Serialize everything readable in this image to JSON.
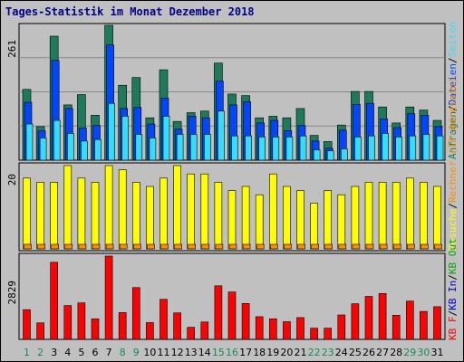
{
  "title": "Tages-Statistik im Monat Dezember 2018",
  "colors": {
    "hits": "#1e7a5a",
    "files": "#0046ff",
    "pages": "#33ddff",
    "visits": "#ffff00",
    "sites": "#ff8c00",
    "kbin": "#0000cc",
    "kbout": "#00aa00",
    "kbf": "#ff0000",
    "weekday": "#000000",
    "weekend": "#1a8a5a"
  },
  "legend_right": {
    "top": [
      "Anfragen",
      "/",
      "Dateien",
      "/",
      "Seiten"
    ],
    "middle": [
      "Besuche",
      "/",
      "Rechner (IP-Adressen)"
    ],
    "bottom": [
      "KB F",
      "/",
      "KB In",
      "/",
      "KB Out"
    ]
  },
  "chart_data": [
    {
      "type": "bar",
      "panel": "Anfragen / Dateien / Seiten",
      "ymax_label": "261",
      "ylim": [
        0,
        261
      ],
      "categories": [
        "1",
        "2",
        "3",
        "4",
        "5",
        "6",
        "7",
        "8",
        "9",
        "10",
        "11",
        "12",
        "13",
        "14",
        "15",
        "16",
        "17",
        "18",
        "19",
        "20",
        "21",
        "22",
        "23",
        "24",
        "25",
        "26",
        "27",
        "28",
        "29",
        "30",
        "31"
      ],
      "weekend_days": [
        1,
        2,
        8,
        9,
        15,
        16,
        22,
        23,
        29,
        30
      ],
      "series": [
        {
          "name": "Anfragen",
          "values": [
            137,
            65,
            240,
            107,
            127,
            87,
            261,
            145,
            160,
            82,
            175,
            75,
            92,
            95,
            188,
            128,
            125,
            82,
            85,
            82,
            100,
            48,
            36,
            68,
            133,
            133,
            103,
            72,
            103,
            97,
            77
          ]
        },
        {
          "name": "Dateien",
          "values": [
            112,
            57,
            193,
            100,
            62,
            67,
            223,
            100,
            102,
            70,
            120,
            60,
            85,
            82,
            153,
            107,
            113,
            72,
            77,
            57,
            67,
            37,
            23,
            58,
            108,
            110,
            80,
            63,
            90,
            87,
            65
          ]
        },
        {
          "name": "Seiten",
          "values": [
            70,
            43,
            77,
            52,
            37,
            40,
            110,
            85,
            50,
            43,
            85,
            50,
            50,
            50,
            95,
            47,
            47,
            45,
            45,
            45,
            47,
            20,
            18,
            22,
            45,
            47,
            52,
            45,
            47,
            50,
            47
          ]
        }
      ]
    },
    {
      "type": "bar",
      "panel": "Besuche / Rechner (IP-Adressen)",
      "ymax_label": "20",
      "ylim": [
        0,
        20
      ],
      "categories": [
        "1",
        "2",
        "3",
        "4",
        "5",
        "6",
        "7",
        "8",
        "9",
        "10",
        "11",
        "12",
        "13",
        "14",
        "15",
        "16",
        "17",
        "18",
        "19",
        "20",
        "21",
        "22",
        "23",
        "24",
        "25",
        "26",
        "27",
        "28",
        "29",
        "30",
        "31"
      ],
      "series": [
        {
          "name": "Besuche",
          "values": [
            17,
            16,
            16,
            20,
            17,
            16,
            20,
            19,
            16,
            15,
            17,
            20,
            18,
            18,
            16,
            14,
            15,
            13,
            18,
            15,
            14,
            11,
            14,
            13,
            15,
            16,
            16,
            16,
            17,
            16,
            15
          ]
        },
        {
          "name": "Rechner (IP-Adressen)",
          "values": [
            1,
            1,
            1,
            1,
            1,
            1,
            1,
            1,
            1,
            1,
            1,
            1,
            1,
            1,
            1,
            1,
            1,
            1,
            1,
            1,
            1,
            1,
            1,
            1,
            1,
            1,
            1,
            1,
            1,
            1,
            1
          ]
        }
      ]
    },
    {
      "type": "bar",
      "panel": "KB F / KB In / KB Out",
      "ymax_label": "2829",
      "ylim": [
        0,
        2829
      ],
      "categories": [
        "1",
        "2",
        "3",
        "4",
        "5",
        "6",
        "7",
        "8",
        "9",
        "10",
        "11",
        "12",
        "13",
        "14",
        "15",
        "16",
        "17",
        "18",
        "19",
        "20",
        "21",
        "22",
        "23",
        "24",
        "25",
        "26",
        "27",
        "28",
        "29",
        "30",
        "31"
      ],
      "series": [
        {
          "name": "KB F",
          "values": [
            1010,
            560,
            2620,
            1150,
            1240,
            700,
            2829,
            910,
            1760,
            570,
            1360,
            900,
            410,
            590,
            1820,
            1610,
            1220,
            770,
            700,
            600,
            740,
            380,
            380,
            830,
            1210,
            1460,
            1560,
            820,
            1300,
            950,
            1110
          ]
        }
      ]
    }
  ]
}
